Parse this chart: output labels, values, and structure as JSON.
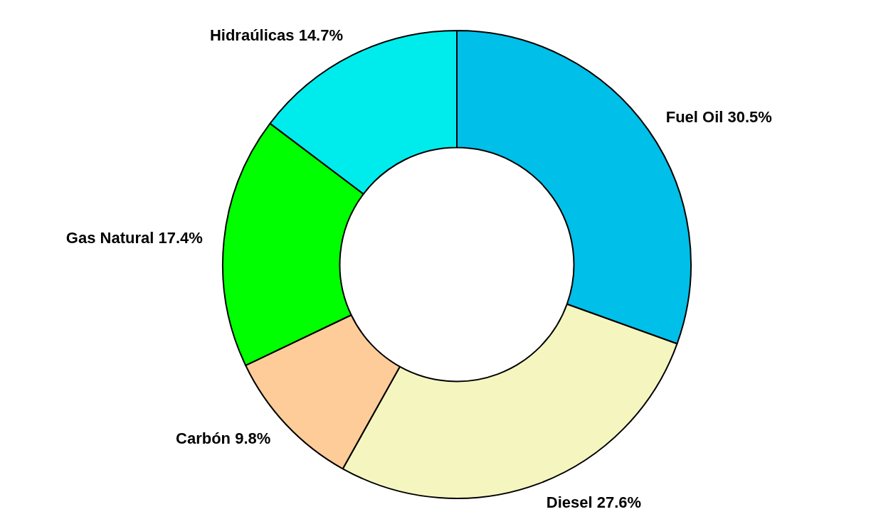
{
  "chart_data": {
    "type": "donut",
    "categories": [
      "Fuel Oil",
      "Diesel",
      "Carbón",
      "Gas Natural",
      "Hidraúlicas"
    ],
    "values": [
      30.5,
      27.6,
      9.8,
      17.4,
      14.7
    ],
    "value_labels": [
      "30.5%",
      "27.6%",
      "9.8%",
      "17.4%",
      "14.7%"
    ],
    "colors": [
      "#00bfe8",
      "#f5f5c0",
      "#fecc99",
      "#00ff00",
      "#00ecec"
    ],
    "legend": false
  }
}
